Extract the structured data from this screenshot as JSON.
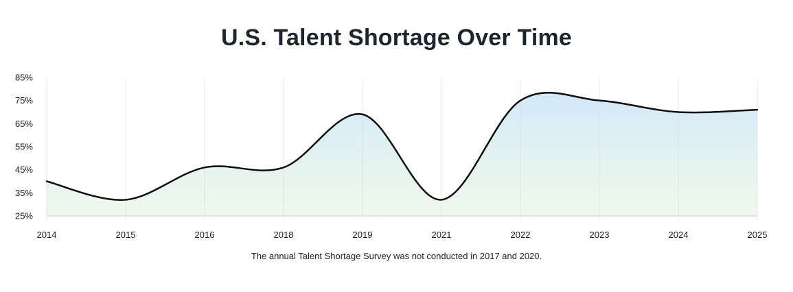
{
  "chart_data": {
    "type": "area",
    "title": "U.S. Talent Shortage Over Time",
    "categories": [
      "2014",
      "2015",
      "2016",
      "2018",
      "2019",
      "2021",
      "2022",
      "2023",
      "2024",
      "2025"
    ],
    "values": [
      40,
      32,
      46,
      46,
      69,
      32,
      75,
      75,
      70,
      71
    ],
    "value_unit": "%",
    "xlabel": "",
    "ylabel": "",
    "ylim": [
      25,
      85
    ],
    "y_tick_step": 10,
    "y_tick_labels": [
      "85%",
      "75%",
      "65%",
      "55%",
      "45%",
      "35%",
      "25%"
    ],
    "grid": "vertical-only",
    "legend": false,
    "line_style": "smooth-spline",
    "footnote": "The annual Talent Shortage Survey was not conducted in 2017 and 2020.",
    "colors": {
      "line": "#0d0d0d",
      "fill_top": "#c7e3f7",
      "fill_upper_mid": "#d8ecf6",
      "fill_lower_mid": "#e4f3ee",
      "fill_bottom": "#eef8ec",
      "grid": "#dadada",
      "axis": "#dcdcdc",
      "title_text": "#1e2430",
      "tick_text": "#1a1a1a",
      "footnote_text": "#232323",
      "background": "#ffffff"
    }
  }
}
